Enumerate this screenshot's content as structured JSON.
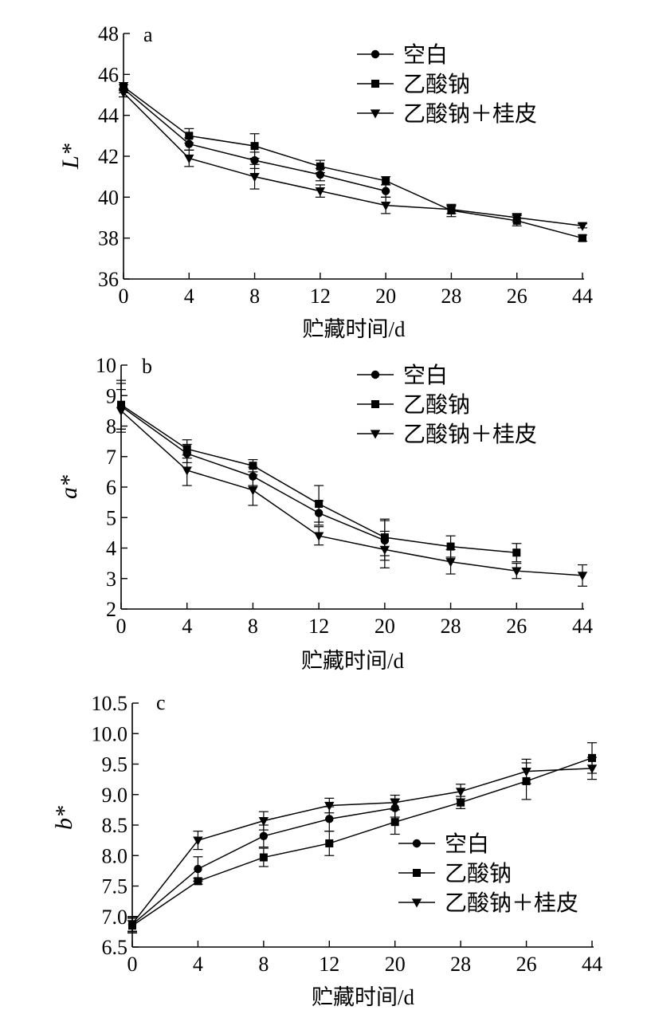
{
  "figure": {
    "x_tick_labels": [
      "0",
      "4",
      "8",
      "12",
      "20",
      "28",
      "26",
      "44"
    ],
    "series_labels": [
      "空白",
      "乙酸钠",
      "乙酸钠＋桂皮"
    ]
  },
  "chart_data": [
    {
      "type": "line",
      "panel_label": "a",
      "x": [
        0,
        4,
        8,
        12,
        20,
        28,
        26,
        44
      ],
      "xlabel": "贮藏时间/d",
      "ylabel": "L*",
      "ylim": [
        36,
        48
      ],
      "yticks": [
        36,
        38,
        40,
        42,
        44,
        46,
        48
      ],
      "ytick_labels": [
        "36",
        "38",
        "40",
        "42",
        "44",
        "46",
        "48"
      ],
      "legend_position": "top-right",
      "series": [
        {
          "name": "空白",
          "marker": "circle",
          "values": [
            45.3,
            42.6,
            41.8,
            41.1,
            40.3,
            null,
            null,
            null
          ],
          "errors": [
            0.2,
            0.3,
            0.4,
            0.3,
            0.3,
            null,
            null,
            null
          ]
        },
        {
          "name": "乙酸钠",
          "marker": "square",
          "values": [
            45.4,
            43.0,
            42.5,
            41.5,
            40.8,
            39.35,
            38.85,
            38.0
          ],
          "errors": [
            0.2,
            0.35,
            0.6,
            0.3,
            0.2,
            0.3,
            0.25,
            0.15
          ]
        },
        {
          "name": "乙酸钠＋桂皮",
          "marker": "triangle-down",
          "values": [
            45.1,
            41.9,
            41.0,
            40.3,
            39.6,
            39.4,
            39.0,
            38.6
          ],
          "errors": [
            0.2,
            0.4,
            0.6,
            0.3,
            0.4,
            0.2,
            0.2,
            0.1
          ]
        }
      ]
    },
    {
      "type": "line",
      "panel_label": "b",
      "x": [
        0,
        4,
        8,
        12,
        20,
        28,
        26,
        44
      ],
      "xlabel": "贮藏时间/d",
      "ylabel": "a*",
      "ylim": [
        2,
        10
      ],
      "yticks": [
        2,
        3,
        4,
        5,
        6,
        7,
        8,
        9,
        10
      ],
      "ytick_labels": [
        "2",
        "3",
        "4",
        "5",
        "6",
        "7",
        "8",
        "9",
        "10"
      ],
      "legend_position": "top-right",
      "series": [
        {
          "name": "空白",
          "marker": "circle",
          "values": [
            8.65,
            7.1,
            6.35,
            5.15,
            4.25,
            null,
            null,
            null
          ],
          "errors": [
            0.75,
            0.3,
            0.3,
            0.4,
            0.65,
            null,
            null,
            null
          ]
        },
        {
          "name": "乙酸钠",
          "marker": "square",
          "values": [
            8.7,
            7.25,
            6.7,
            5.45,
            4.35,
            4.05,
            3.85,
            null
          ],
          "errors": [
            0.8,
            0.3,
            0.2,
            0.6,
            0.6,
            0.35,
            0.3,
            null
          ]
        },
        {
          "name": "乙酸钠＋桂皮",
          "marker": "triangle-down",
          "values": [
            8.5,
            6.55,
            5.9,
            4.4,
            3.95,
            3.55,
            3.25,
            3.1
          ],
          "errors": [
            0.7,
            0.5,
            0.5,
            0.3,
            0.6,
            0.4,
            0.25,
            0.35
          ]
        }
      ]
    },
    {
      "type": "line",
      "panel_label": "c",
      "x": [
        0,
        4,
        8,
        12,
        20,
        28,
        26,
        44
      ],
      "xlabel": "贮藏时间/d",
      "ylabel": "b*",
      "ylim": [
        6.5,
        10.5
      ],
      "yticks": [
        6.5,
        7.0,
        7.5,
        8.0,
        8.5,
        9.0,
        9.5,
        10.0,
        10.5
      ],
      "ytick_labels": [
        "6.5",
        "7.0",
        "7.5",
        "8.0",
        "8.5",
        "9.0",
        "9.5",
        "10.0",
        "10.5"
      ],
      "legend_position": "bottom-right",
      "series": [
        {
          "name": "空白",
          "marker": "circle",
          "values": [
            6.87,
            7.78,
            8.32,
            8.6,
            8.78,
            null,
            null,
            null
          ],
          "errors": [
            0.12,
            0.2,
            0.18,
            0.2,
            0.15,
            null,
            null,
            null
          ]
        },
        {
          "name": "乙酸钠",
          "marker": "square",
          "values": [
            6.85,
            7.58,
            7.97,
            8.2,
            8.55,
            8.87,
            9.22,
            9.6
          ],
          "errors": [
            0.12,
            0.05,
            0.15,
            0.2,
            0.2,
            0.1,
            0.3,
            0.25
          ]
        },
        {
          "name": "乙酸钠＋桂皮",
          "marker": "triangle-down",
          "values": [
            6.88,
            8.25,
            8.57,
            8.82,
            8.87,
            9.05,
            9.38,
            9.43
          ],
          "errors": [
            0.12,
            0.15,
            0.15,
            0.12,
            0.12,
            0.12,
            0.2,
            0.18
          ]
        }
      ]
    }
  ]
}
